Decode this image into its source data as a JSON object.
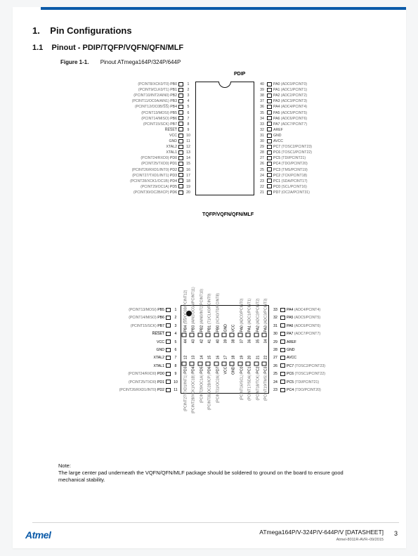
{
  "section": {
    "num": "1.",
    "title": "Pin Configurations"
  },
  "subsection": {
    "num": "1.1",
    "title": "Pinout - PDIP/TQFP/VQFN/QFN/MLF"
  },
  "figure": {
    "label": "Figure 1-1.",
    "caption": "Pinout ATmega164P/324P/644P"
  },
  "pdip": {
    "title": "PDIP",
    "left": [
      {
        "n": 1,
        "p": "PB0",
        "f": "(PCINT8/XCK0/T0)"
      },
      {
        "n": 2,
        "p": "PB1",
        "f": "(PCINT9/CLK0/T1)"
      },
      {
        "n": 3,
        "p": "PB2",
        "f": "(PCINT10/INT2/AIN0)"
      },
      {
        "n": 4,
        "p": "PB3",
        "f": "(PCINT11/OC0A/AIN1)"
      },
      {
        "n": 5,
        "p": "PB4",
        "f": "(PCINT12/OC0B/S̅S̅)"
      },
      {
        "n": 6,
        "p": "PB5",
        "f": "(PCINT13/MOSI)"
      },
      {
        "n": 7,
        "p": "PB6",
        "f": "(PCINT14/MISO)"
      },
      {
        "n": 8,
        "p": "PB7",
        "f": "(PCINT15/SCK)"
      },
      {
        "n": 9,
        "p": "R̅E̅S̅E̅T̅",
        "f": ""
      },
      {
        "n": 10,
        "p": "VCC",
        "f": ""
      },
      {
        "n": 11,
        "p": "GND",
        "f": ""
      },
      {
        "n": 12,
        "p": "XTAL2",
        "f": ""
      },
      {
        "n": 13,
        "p": "XTAL1",
        "f": ""
      },
      {
        "n": 14,
        "p": "PD0",
        "f": "(PCINT24/RXD0)"
      },
      {
        "n": 15,
        "p": "PD1",
        "f": "(PCINT25/TXD0)"
      },
      {
        "n": 16,
        "p": "PD2",
        "f": "(PCINT26/RXD1/INT0)"
      },
      {
        "n": 17,
        "p": "PD3",
        "f": "(PCINT27/TXD1/INT1)"
      },
      {
        "n": 18,
        "p": "PD4",
        "f": "(PCINT28/XCK1/OC1B)"
      },
      {
        "n": 19,
        "p": "PD5",
        "f": "(PCINT29/OC1A)"
      },
      {
        "n": 20,
        "p": "PD6",
        "f": "(PCINT30/OC2B/ICP)"
      }
    ],
    "right": [
      {
        "n": 40,
        "p": "PA0",
        "f": "(ADC0/PCINT0)"
      },
      {
        "n": 39,
        "p": "PA1",
        "f": "(ADC1/PCINT1)"
      },
      {
        "n": 38,
        "p": "PA2",
        "f": "(ADC2/PCINT2)"
      },
      {
        "n": 37,
        "p": "PA3",
        "f": "(ADC3/PCINT3)"
      },
      {
        "n": 36,
        "p": "PA4",
        "f": "(ADC4/PCINT4)"
      },
      {
        "n": 35,
        "p": "PA5",
        "f": "(ADC5/PCINT5)"
      },
      {
        "n": 34,
        "p": "PA6",
        "f": "(ADC6/PCINT6)"
      },
      {
        "n": 33,
        "p": "PA7",
        "f": "(ADC7/PCINT7)"
      },
      {
        "n": 32,
        "p": "AREF",
        "f": ""
      },
      {
        "n": 31,
        "p": "GND",
        "f": ""
      },
      {
        "n": 30,
        "p": "AVCC",
        "f": ""
      },
      {
        "n": 29,
        "p": "PC7",
        "f": "(TOSC2/PCINT23)"
      },
      {
        "n": 28,
        "p": "PC6",
        "f": "(TOSC1/PCINT22)"
      },
      {
        "n": 27,
        "p": "PC5",
        "f": "(TDI/PCINT21)"
      },
      {
        "n": 26,
        "p": "PC4",
        "f": "(TDO/PCINT20)"
      },
      {
        "n": 25,
        "p": "PC3",
        "f": "(TMS/PCINT19)"
      },
      {
        "n": 24,
        "p": "PC2",
        "f": "(TCK/PCINT18)"
      },
      {
        "n": 23,
        "p": "PC1",
        "f": "(SDA/PCINT17)"
      },
      {
        "n": 22,
        "p": "PC0",
        "f": "(SCL/PCINT16)"
      },
      {
        "n": 21,
        "p": "PD7",
        "f": "(OC2A/PCINT31)"
      }
    ]
  },
  "tqfp": {
    "title": "TQFP/VQFN/QFN/MLF",
    "left": [
      {
        "n": 1,
        "p": "PB5",
        "f": "(PCINT13/MOSI)"
      },
      {
        "n": 2,
        "p": "PB6",
        "f": "(PCINT14/MISO)"
      },
      {
        "n": 3,
        "p": "PB7",
        "f": "(PCINT15/SCK)"
      },
      {
        "n": 4,
        "p": "R̅E̅S̅E̅T̅",
        "f": ""
      },
      {
        "n": 5,
        "p": "VCC",
        "f": ""
      },
      {
        "n": 6,
        "p": "GND",
        "f": ""
      },
      {
        "n": 7,
        "p": "XTAL2",
        "f": ""
      },
      {
        "n": 8,
        "p": "XTAL1",
        "f": ""
      },
      {
        "n": 9,
        "p": "PD0",
        "f": "(PCINT24/RXD0)"
      },
      {
        "n": 10,
        "p": "PD1",
        "f": "(PCINT25/TXD0)"
      },
      {
        "n": 11,
        "p": "PD2",
        "f": "(PCINT26/RXD1/INT0)"
      }
    ],
    "right": [
      {
        "n": 33,
        "p": "PA4",
        "f": "(ADC4/PCINT4)"
      },
      {
        "n": 32,
        "p": "PA5",
        "f": "(ADC5/PCINT5)"
      },
      {
        "n": 31,
        "p": "PA6",
        "f": "(ADC6/PCINT6)"
      },
      {
        "n": 30,
        "p": "PA7",
        "f": "(ADC7/PCINT7)"
      },
      {
        "n": 29,
        "p": "AREF",
        "f": ""
      },
      {
        "n": 28,
        "p": "GND",
        "f": ""
      },
      {
        "n": 27,
        "p": "AVCC",
        "f": ""
      },
      {
        "n": 26,
        "p": "PC7",
        "f": "(TOSC2/PCINT23)"
      },
      {
        "n": 25,
        "p": "PC6",
        "f": "(TOSC1/PCINT22)"
      },
      {
        "n": 24,
        "p": "PC5",
        "f": "(TDI/PCINT21)"
      },
      {
        "n": 23,
        "p": "PC4",
        "f": "(TDO/PCINT20)"
      }
    ],
    "top": [
      {
        "n": 44,
        "p": "PB4",
        "f": "(S̅S̅/OC0B/PCINT12)"
      },
      {
        "n": 43,
        "p": "PB3",
        "f": "(AIN1/OC0A/PCINT11)"
      },
      {
        "n": 42,
        "p": "PB2",
        "f": "(AIN0/INT2/PCINT10)"
      },
      {
        "n": 41,
        "p": "PB1",
        "f": "(T1/CLK0/PCINT9)"
      },
      {
        "n": 40,
        "p": "PB0",
        "f": "(XCK0/T0/PCINT8)"
      },
      {
        "n": 39,
        "p": "GND",
        "f": ""
      },
      {
        "n": 38,
        "p": "VCC",
        "f": ""
      },
      {
        "n": 37,
        "p": "PA0",
        "f": "(ADC0/PCINT0)"
      },
      {
        "n": 36,
        "p": "PA1",
        "f": "(ADC1/PCINT1)"
      },
      {
        "n": 35,
        "p": "PA2",
        "f": "(ADC2/PCINT2)"
      },
      {
        "n": 34,
        "p": "PA3",
        "f": "(ADC3/PCINT3)"
      }
    ],
    "bottom": [
      {
        "n": 12,
        "p": "PD3",
        "f": "(PCINT27/TXD1/INT1)"
      },
      {
        "n": 13,
        "p": "PD4",
        "f": "(PCINT28/XCK1/OC1B)"
      },
      {
        "n": 14,
        "p": "PD5",
        "f": "(PCINT29/OC1A)"
      },
      {
        "n": 15,
        "p": "PD6",
        "f": "(PCINT30/OC2B/ICP)"
      },
      {
        "n": 16,
        "p": "PD7",
        "f": "(PCINT31/OC2A)"
      },
      {
        "n": 17,
        "p": "VCC",
        "f": ""
      },
      {
        "n": 18,
        "p": "GND",
        "f": ""
      },
      {
        "n": 19,
        "p": "PC0",
        "f": "(PCINT16/SCL)"
      },
      {
        "n": 20,
        "p": "PC1",
        "f": "(PCINT17/SDA)"
      },
      {
        "n": 21,
        "p": "PC2",
        "f": "(PCINT18/TCK)"
      },
      {
        "n": 22,
        "p": "PC3",
        "f": "(PCINT19/TMS)"
      }
    ]
  },
  "note": {
    "label": "Note:",
    "text": "The large center pad underneath the VQFN/QFN/MLF package should be soldered to ground on the board to ensure good mechanical stability."
  },
  "footer": {
    "logo": "Atmel",
    "title": "ATmega164P/V-324P/V-644P/V [DATASHEET]",
    "code": "Atmel-8011R-AVR–09/2015",
    "page": "3"
  }
}
